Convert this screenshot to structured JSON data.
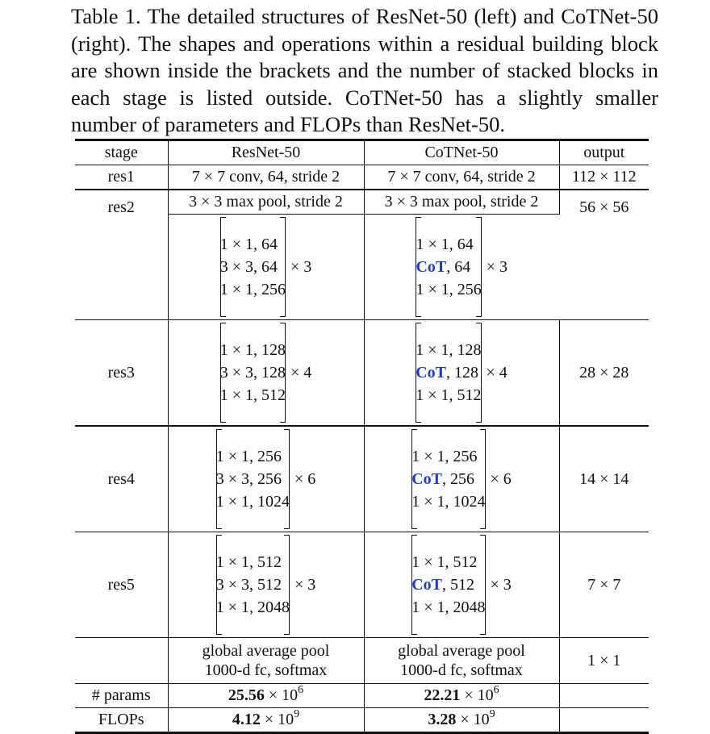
{
  "caption": "Table 1. The detailed structures of ResNet-50 (left) and CoTNet-50 (right). The shapes and operations within a residual building block are shown inside the brackets and the number of stacked blocks in each stage is listed outside. CoTNet-50 has a slightly smaller number of parameters and FLOPs than ResNet-50.",
  "header": {
    "stage": "stage",
    "resnet": "ResNet-50",
    "cotnet": "CoTNet-50",
    "output": "output"
  },
  "res1": {
    "stage": "res1",
    "resnet": "7 × 7 conv, 64, stride 2",
    "cotnet": "7 × 7 conv, 64, stride 2",
    "output": "112 × 112"
  },
  "res2": {
    "stage": "res2",
    "output": "56 × 56",
    "pool_resnet": "3 × 3 max pool, stride 2",
    "pool_cotnet": "3 × 3 max pool, stride 2",
    "resnet": {
      "lines": [
        "1 × 1, 64",
        "3 × 3, 64",
        "1 × 1, 256"
      ],
      "mult": "× 3"
    },
    "cotnet": {
      "l1": "1 × 1, 64",
      "cot": "CoT",
      "l2": ", 64",
      "l3": "1 × 1, 256",
      "mult": "× 3"
    }
  },
  "res3": {
    "stage": "res3",
    "output": "28 × 28",
    "resnet": {
      "lines": [
        "1 × 1, 128",
        "3 × 3, 128",
        "1 × 1, 512"
      ],
      "mult": "× 4"
    },
    "cotnet": {
      "l1": "1 × 1, 128",
      "cot": "CoT",
      "l2": ", 128",
      "l3": "1 × 1, 512",
      "mult": "× 4"
    }
  },
  "res4": {
    "stage": "res4",
    "output": "14 × 14",
    "resnet": {
      "lines": [
        "1 × 1, 256",
        "3 × 3, 256",
        "1 × 1, 1024"
      ],
      "mult": "× 6"
    },
    "cotnet": {
      "l1": "1 × 1, 256",
      "cot": "CoT",
      "l2": ", 256",
      "l3": "1 × 1, 1024",
      "mult": "× 6"
    }
  },
  "res5": {
    "stage": "res5",
    "output": "7 × 7",
    "resnet": {
      "lines": [
        "1 × 1, 512",
        "3 × 3, 512",
        "1 × 1, 2048"
      ],
      "mult": "× 3"
    },
    "cotnet": {
      "l1": "1 × 1, 512",
      "cot": "CoT",
      "l2": ", 512",
      "l3": "1 × 1, 2048",
      "mult": "× 3"
    }
  },
  "head": {
    "resnet": [
      "global average pool",
      "1000-d fc, softmax"
    ],
    "cotnet": [
      "global average pool",
      "1000-d fc, softmax"
    ],
    "output": "1 × 1"
  },
  "params": {
    "label": "# params",
    "resnet_val": "25.56",
    "resnet_unit": " × 10",
    "resnet_exp": "6",
    "cotnet_val": "22.21",
    "cotnet_unit": " × 10",
    "cotnet_exp": "6"
  },
  "flops": {
    "label": "FLOPs",
    "resnet_val": "4.12",
    "resnet_unit": " × 10",
    "resnet_exp": "9",
    "cotnet_val": "3.28",
    "cotnet_unit": " × 10",
    "cotnet_exp": "9"
  },
  "colors": {
    "cot_highlight": "#1a3fd6"
  }
}
